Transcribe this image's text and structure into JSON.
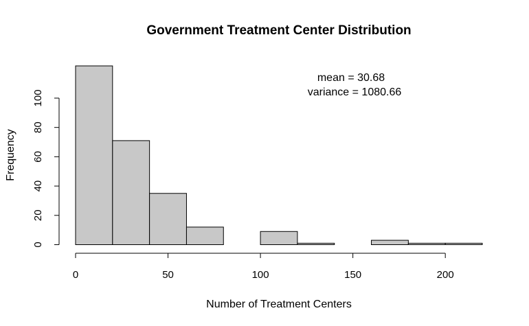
{
  "chart_data": {
    "type": "bar",
    "title": "Government Treatment Center Distribution",
    "xlabel": "Number of Treatment Centers",
    "ylabel": "Frequency",
    "bins": [
      {
        "x0": 0,
        "x1": 20,
        "count": 122
      },
      {
        "x0": 20,
        "x1": 40,
        "count": 71
      },
      {
        "x0": 40,
        "x1": 60,
        "count": 35
      },
      {
        "x0": 60,
        "x1": 80,
        "count": 12
      },
      {
        "x0": 80,
        "x1": 100,
        "count": 0
      },
      {
        "x0": 100,
        "x1": 120,
        "count": 9
      },
      {
        "x0": 120,
        "x1": 140,
        "count": 1
      },
      {
        "x0": 140,
        "x1": 160,
        "count": 0
      },
      {
        "x0": 160,
        "x1": 180,
        "count": 3
      },
      {
        "x0": 180,
        "x1": 200,
        "count": 1
      },
      {
        "x0": 200,
        "x1": 220,
        "count": 1
      }
    ],
    "xticks": [
      0,
      50,
      100,
      150,
      200
    ],
    "yticks": [
      0,
      20,
      40,
      60,
      80,
      100
    ],
    "xlim": [
      0,
      220
    ],
    "ylim": [
      0,
      122
    ],
    "grid": false,
    "bar_color": "#c8c8c8",
    "annotations": {
      "mean_label": "mean =  30.68",
      "variance_label": "variance =  1080.66"
    }
  }
}
